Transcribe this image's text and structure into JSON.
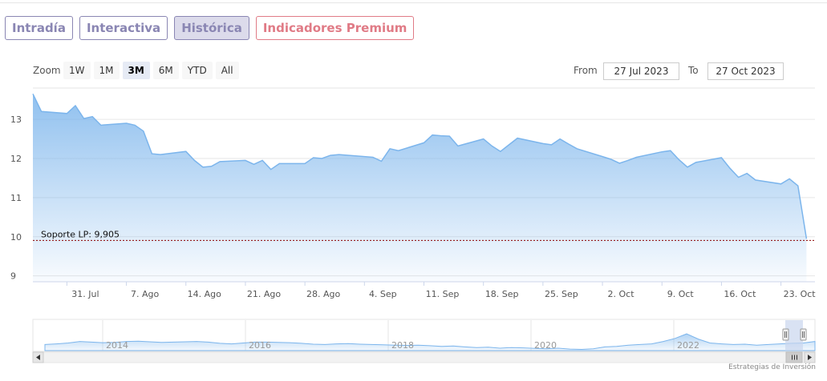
{
  "tabs": [
    {
      "label": "Intradía",
      "active": false,
      "premium": false
    },
    {
      "label": "Interactiva",
      "active": false,
      "premium": false
    },
    {
      "label": "Histórica",
      "active": true,
      "premium": false
    },
    {
      "label": "Indicadores Premium",
      "active": false,
      "premium": true
    }
  ],
  "zoom": {
    "label": "Zoom",
    "options": [
      "1W",
      "1M",
      "3M",
      "6M",
      "YTD",
      "All"
    ],
    "selected": "3M"
  },
  "range": {
    "from_label": "From",
    "from_value": "27 Jul 2023",
    "to_label": "To",
    "to_value": "27 Oct 2023"
  },
  "credit": "Estrategias de Inversión",
  "colors": {
    "series_line": "#7cb5ec",
    "series_fill_top": "#7cb5ec",
    "support_line": "#8b0000",
    "tab_border": "#8a86b3",
    "premium_color": "#e07b86"
  },
  "chart_data": {
    "type": "area",
    "ylim": [
      8.85,
      13.8
    ],
    "y_ticks": [
      9,
      10,
      11,
      12,
      13
    ],
    "x_ticks": [
      {
        "date": "2023-07-31",
        "label": "31. Jul"
      },
      {
        "date": "2023-08-07",
        "label": "7. Ago"
      },
      {
        "date": "2023-08-14",
        "label": "14. Ago"
      },
      {
        "date": "2023-08-21",
        "label": "21. Ago"
      },
      {
        "date": "2023-08-28",
        "label": "28. Ago"
      },
      {
        "date": "2023-09-04",
        "label": "4. Sep"
      },
      {
        "date": "2023-09-11",
        "label": "11. Sep"
      },
      {
        "date": "2023-09-18",
        "label": "18. Sep"
      },
      {
        "date": "2023-09-25",
        "label": "25. Sep"
      },
      {
        "date": "2023-10-02",
        "label": "2. Oct"
      },
      {
        "date": "2023-10-09",
        "label": "9. Oct"
      },
      {
        "date": "2023-10-16",
        "label": "16. Oct"
      },
      {
        "date": "2023-10-23",
        "label": "23. Oct"
      }
    ],
    "x_range": [
      "2023-07-27",
      "2023-10-27"
    ],
    "series": [
      {
        "points": [
          [
            "2023-07-27",
            13.65
          ],
          [
            "2023-07-28",
            13.2
          ],
          [
            "2023-07-31",
            13.15
          ],
          [
            "2023-08-01",
            13.35
          ],
          [
            "2023-08-02",
            13.02
          ],
          [
            "2023-08-03",
            13.07
          ],
          [
            "2023-08-04",
            12.85
          ],
          [
            "2023-08-07",
            12.9
          ],
          [
            "2023-08-08",
            12.85
          ],
          [
            "2023-08-09",
            12.7
          ],
          [
            "2023-08-10",
            12.12
          ],
          [
            "2023-08-11",
            12.1
          ],
          [
            "2023-08-14",
            12.18
          ],
          [
            "2023-08-15",
            11.95
          ],
          [
            "2023-08-16",
            11.78
          ],
          [
            "2023-08-17",
            11.8
          ],
          [
            "2023-08-18",
            11.92
          ],
          [
            "2023-08-21",
            11.95
          ],
          [
            "2023-08-22",
            11.85
          ],
          [
            "2023-08-23",
            11.95
          ],
          [
            "2023-08-24",
            11.72
          ],
          [
            "2023-08-25",
            11.87
          ],
          [
            "2023-08-28",
            11.87
          ],
          [
            "2023-08-29",
            12.02
          ],
          [
            "2023-08-30",
            12.0
          ],
          [
            "2023-08-31",
            12.08
          ],
          [
            "2023-09-01",
            12.1
          ],
          [
            "2023-09-04",
            12.05
          ],
          [
            "2023-09-05",
            12.03
          ],
          [
            "2023-09-06",
            11.93
          ],
          [
            "2023-09-07",
            12.25
          ],
          [
            "2023-09-08",
            12.2
          ],
          [
            "2023-09-11",
            12.4
          ],
          [
            "2023-09-12",
            12.6
          ],
          [
            "2023-09-13",
            12.58
          ],
          [
            "2023-09-14",
            12.57
          ],
          [
            "2023-09-15",
            12.32
          ],
          [
            "2023-09-18",
            12.5
          ],
          [
            "2023-09-19",
            12.32
          ],
          [
            "2023-09-20",
            12.18
          ],
          [
            "2023-09-21",
            12.35
          ],
          [
            "2023-09-22",
            12.52
          ],
          [
            "2023-09-25",
            12.38
          ],
          [
            "2023-09-26",
            12.35
          ],
          [
            "2023-09-27",
            12.5
          ],
          [
            "2023-09-28",
            12.37
          ],
          [
            "2023-09-29",
            12.25
          ],
          [
            "2023-10-02",
            12.05
          ],
          [
            "2023-10-03",
            11.98
          ],
          [
            "2023-10-04",
            11.88
          ],
          [
            "2023-10-05",
            11.95
          ],
          [
            "2023-10-06",
            12.03
          ],
          [
            "2023-10-09",
            12.17
          ],
          [
            "2023-10-10",
            12.2
          ],
          [
            "2023-10-11",
            11.97
          ],
          [
            "2023-10-12",
            11.78
          ],
          [
            "2023-10-13",
            11.9
          ],
          [
            "2023-10-16",
            12.02
          ],
          [
            "2023-10-17",
            11.75
          ],
          [
            "2023-10-18",
            11.52
          ],
          [
            "2023-10-19",
            11.62
          ],
          [
            "2023-10-20",
            11.45
          ],
          [
            "2023-10-23",
            11.35
          ],
          [
            "2023-10-24",
            11.48
          ],
          [
            "2023-10-25",
            11.3
          ],
          [
            "2023-10-26",
            9.95
          ]
        ]
      }
    ],
    "annotations": [
      {
        "type": "hline",
        "y": 9.905,
        "label": "Soporte LP: 9,905",
        "style": "dashed"
      }
    ],
    "navigator": {
      "x_tick_labels": [
        "2014",
        "2016",
        "2018",
        "2020",
        "2022"
      ]
    }
  }
}
